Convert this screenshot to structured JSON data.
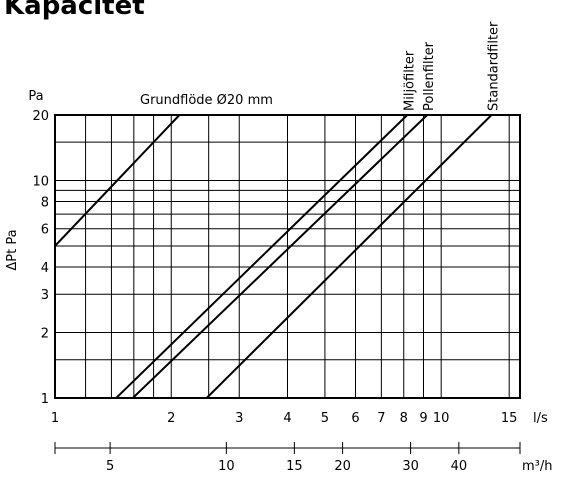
{
  "chart_data": {
    "type": "line",
    "title": "Kapacitet",
    "y_unit": "Pa",
    "ylabel": "ΔPt Pa",
    "xlabel": "l/s",
    "x2label": "m³/h",
    "xscale": "log",
    "yscale": "log",
    "grid": true,
    "xlim": [
      1,
      16
    ],
    "ylim": [
      1,
      20
    ],
    "xticks": [
      1,
      2,
      3,
      4,
      5,
      6,
      7,
      8,
      9,
      10,
      15
    ],
    "xgrid_minor": [
      1.2,
      1.4,
      1.6,
      1.8,
      2.5
    ],
    "yticks": [
      1,
      2,
      3,
      4,
      6,
      8,
      10,
      20
    ],
    "ygrid_minor": [
      1.5,
      5,
      7,
      9,
      15
    ],
    "x2lim": [
      3.6,
      57.6
    ],
    "x2ticks": [
      5,
      10,
      15,
      20,
      30,
      40
    ],
    "color": "#000000",
    "series": [
      {
        "name": "Grundflöde Ø20 mm",
        "x": [
          1,
          2.1
        ],
        "values": [
          5,
          20
        ]
      },
      {
        "name": "Miljöfilter",
        "x": [
          1.44,
          8.17
        ],
        "values": [
          1,
          20
        ]
      },
      {
        "name": "Pollenfilter",
        "x": [
          1.59,
          9.2
        ],
        "values": [
          1,
          20
        ]
      },
      {
        "name": "Standardfilter",
        "x": [
          2.47,
          13.5
        ],
        "values": [
          1,
          20
        ]
      }
    ]
  }
}
